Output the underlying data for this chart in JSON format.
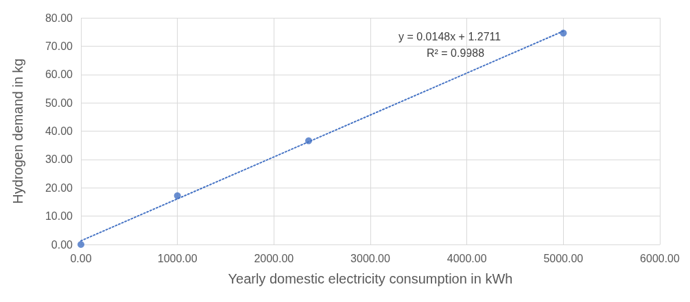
{
  "chart_data": {
    "type": "scatter",
    "xlabel": "Yearly domestic electricity consumption in kWh",
    "ylabel": "Hydrogen demand in kg",
    "series": [
      {
        "color": "#4472c4",
        "x": [
          0,
          1000,
          2360,
          5000
        ],
        "values": [
          0,
          17.2,
          36.6,
          74.6
        ],
        "marker": "circle"
      },
      {
        "type": "line",
        "color": "#4472c4",
        "x": [
          0,
          5000
        ],
        "values": [
          1.3,
          75.3
        ],
        "line_style": "dotted",
        "marker": "none"
      }
    ],
    "xlim": [
      0,
      6000
    ],
    "xticks": [
      {
        "value": 0,
        "label": "0.00"
      },
      {
        "value": 1000,
        "label": "1000.00"
      },
      {
        "value": 2000,
        "label": "2000.00"
      },
      {
        "value": 3000,
        "label": "3000.00"
      },
      {
        "value": 4000,
        "label": "4000.00"
      },
      {
        "value": 5000,
        "label": "5000.00"
      },
      {
        "value": 6000,
        "label": "6000.00"
      }
    ],
    "ylim": [
      0,
      80
    ],
    "yticks": [
      {
        "value": 0,
        "label": "0.00"
      },
      {
        "value": 10,
        "label": "10.00"
      },
      {
        "value": 20,
        "label": "20.00"
      },
      {
        "value": 30,
        "label": "30.00"
      },
      {
        "value": 40,
        "label": "40.00"
      },
      {
        "value": 50,
        "label": "50.00"
      },
      {
        "value": 60,
        "label": "60.00"
      },
      {
        "value": 70,
        "label": "70.00"
      },
      {
        "value": 80,
        "label": "80.00"
      }
    ],
    "grid": true,
    "annotations": [
      "y = 0.0148x + 1.2711",
      "R² = 0.9988"
    ]
  }
}
